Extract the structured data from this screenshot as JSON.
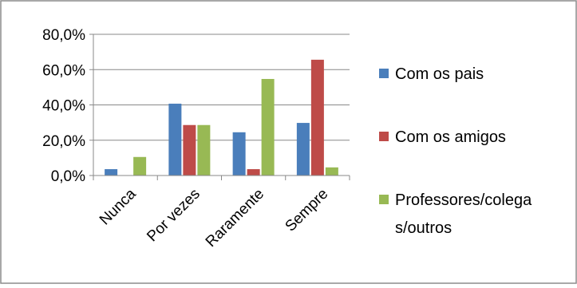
{
  "chart_data": {
    "type": "bar",
    "title": "",
    "xlabel": "",
    "ylabel": "",
    "categories": [
      "Nunca",
      "Por vezes",
      "Raramente",
      "Sempre"
    ],
    "series": [
      {
        "name": "Com os pais",
        "values": [
          3.6,
          40.7,
          24.5,
          29.8
        ],
        "color": "#4a7ebb"
      },
      {
        "name": "Com os amigos",
        "values": [
          0.0,
          28.6,
          3.6,
          65.6
        ],
        "color": "#be4b48"
      },
      {
        "name": "Professores/colegas/outros",
        "values": [
          10.5,
          28.6,
          54.7,
          4.6
        ],
        "color": "#98b954"
      }
    ],
    "legend_lines": [
      [
        "Com os pais"
      ],
      [
        "Com os amigos"
      ],
      [
        "Professores/colega",
        "s/outros"
      ]
    ],
    "y_ticks": [
      "0,0%",
      "20,0%",
      "40,0%",
      "60,0%",
      "80,0%"
    ],
    "y_tick_values": [
      0,
      20,
      40,
      60,
      80
    ],
    "ylim": [
      0,
      80
    ],
    "grid": true,
    "legend_position": "right"
  }
}
